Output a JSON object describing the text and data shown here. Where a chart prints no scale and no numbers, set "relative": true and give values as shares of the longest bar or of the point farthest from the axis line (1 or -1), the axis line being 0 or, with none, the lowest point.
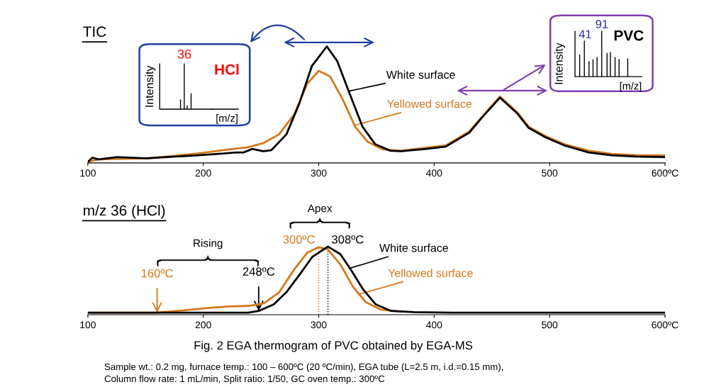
{
  "chart_data": [
    {
      "type": "line",
      "title": "TIC",
      "relative": true,
      "legend": false,
      "grid": false,
      "xlim": [
        100,
        600
      ],
      "xticks": [
        100,
        200,
        300,
        400,
        500,
        {
          "value": 600,
          "label": "600ºC"
        }
      ],
      "series": [
        {
          "name": "White surface",
          "color": "#000000",
          "x": [
            100,
            104,
            109.5,
            125,
            151,
            195,
            217,
            228,
            235,
            242.5,
            252,
            259,
            272,
            283,
            294,
            307,
            316,
            327,
            338,
            349,
            362,
            371,
            393,
            410,
            430.5,
            441,
            457,
            472,
            482,
            496.5,
            513,
            534,
            554,
            575,
            600
          ],
          "values": [
            0.01,
            0.045,
            0.03,
            0.05,
            0.04,
            0.065,
            0.08,
            0.09,
            0.09,
            0.12,
            0.1,
            0.11,
            0.245,
            0.505,
            0.83,
            1.0,
            0.875,
            0.59,
            0.31,
            0.16,
            0.105,
            0.1,
            0.12,
            0.14,
            0.26,
            0.385,
            0.56,
            0.425,
            0.3,
            0.22,
            0.15,
            0.09,
            0.065,
            0.055,
            0.05
          ]
        },
        {
          "name": "Yellowed surface",
          "color": "#d4781c",
          "x": [
            100,
            109.5,
            151,
            195,
            217,
            239,
            252,
            265.6,
            279,
            290,
            300,
            309.6,
            320.6,
            331.6,
            342.6,
            356,
            371,
            393,
            410,
            430.5,
            441,
            457,
            472,
            482,
            496.5,
            513,
            534,
            554,
            575,
            600
          ],
          "values": [
            0.01,
            0.03,
            0.04,
            0.08,
            0.11,
            0.135,
            0.17,
            0.245,
            0.42,
            0.68,
            0.79,
            0.745,
            0.55,
            0.31,
            0.18,
            0.115,
            0.105,
            0.13,
            0.15,
            0.27,
            0.39,
            0.57,
            0.435,
            0.31,
            0.23,
            0.16,
            0.105,
            0.077,
            0.067,
            0.065
          ]
        }
      ],
      "annotations": [
        "36",
        "HCl",
        "Intensity",
        "[m/z]",
        "41",
        "91",
        "PVC",
        "Intensity",
        "[m/z]"
      ]
    },
    {
      "type": "line",
      "title": "m/z 36 (HCl)",
      "relative": true,
      "legend": false,
      "grid": false,
      "xlim": [
        100,
        600
      ],
      "xticks": [
        100,
        200,
        300,
        400,
        500,
        {
          "value": 600,
          "label": "600ºC"
        }
      ],
      "series": [
        {
          "name": "White surface",
          "color": "#000000",
          "x": [
            100,
            239,
            248,
            261,
            272,
            283.5,
            294.5,
            308,
            318.7,
            327.5,
            338.5,
            349.5,
            362.8,
            382.6,
            415.6,
            500,
            600
          ],
          "values": [
            0.03,
            0.03,
            0.055,
            0.15,
            0.33,
            0.59,
            0.85,
            1.0,
            0.89,
            0.67,
            0.37,
            0.15,
            0.055,
            0.037,
            0.03,
            0.03,
            0.03
          ]
        },
        {
          "name": "Yellowed surface",
          "color": "#d4781c",
          "x": [
            100,
            158,
            177.8,
            199.8,
            221.8,
            239.4,
            252.6,
            265.8,
            279,
            290,
            300,
            307.7,
            318.7,
            329.7,
            340.7,
            354,
            371.5
          ],
          "values": [
            0.03,
            0.03,
            0.055,
            0.093,
            0.12,
            0.13,
            0.167,
            0.33,
            0.67,
            0.91,
            0.99,
            0.96,
            0.74,
            0.41,
            0.185,
            0.074,
            0.044
          ]
        }
      ],
      "ref_lines": [
        {
          "axis": "x",
          "value": 300,
          "label": "300ºC",
          "color": "#d4781c",
          "line_style": "dotted"
        },
        {
          "axis": "x",
          "value": 308,
          "label": "308ºC",
          "color": "#000000",
          "line_style": "dotted"
        }
      ],
      "annotations": [
        {
          "text": "160ºC",
          "x": 160,
          "y": 0.03
        },
        {
          "text": "248ºC",
          "x": 248,
          "y": 0.055
        },
        "Rising",
        "Apex",
        "Fig. 2 EGA thermogram of PVC obtained by EGA-MS",
        "Sample wt.: 0.2 mg, furnace temp.: 100 – 600ºC (20 ºC/min), EGA tube (L=2.5 m, i.d.=0.15 mm),",
        "Column flow rate: 1 mL/min, Split ratio: 1/50, GC oven temp.: 300ºC"
      ]
    }
  ]
}
